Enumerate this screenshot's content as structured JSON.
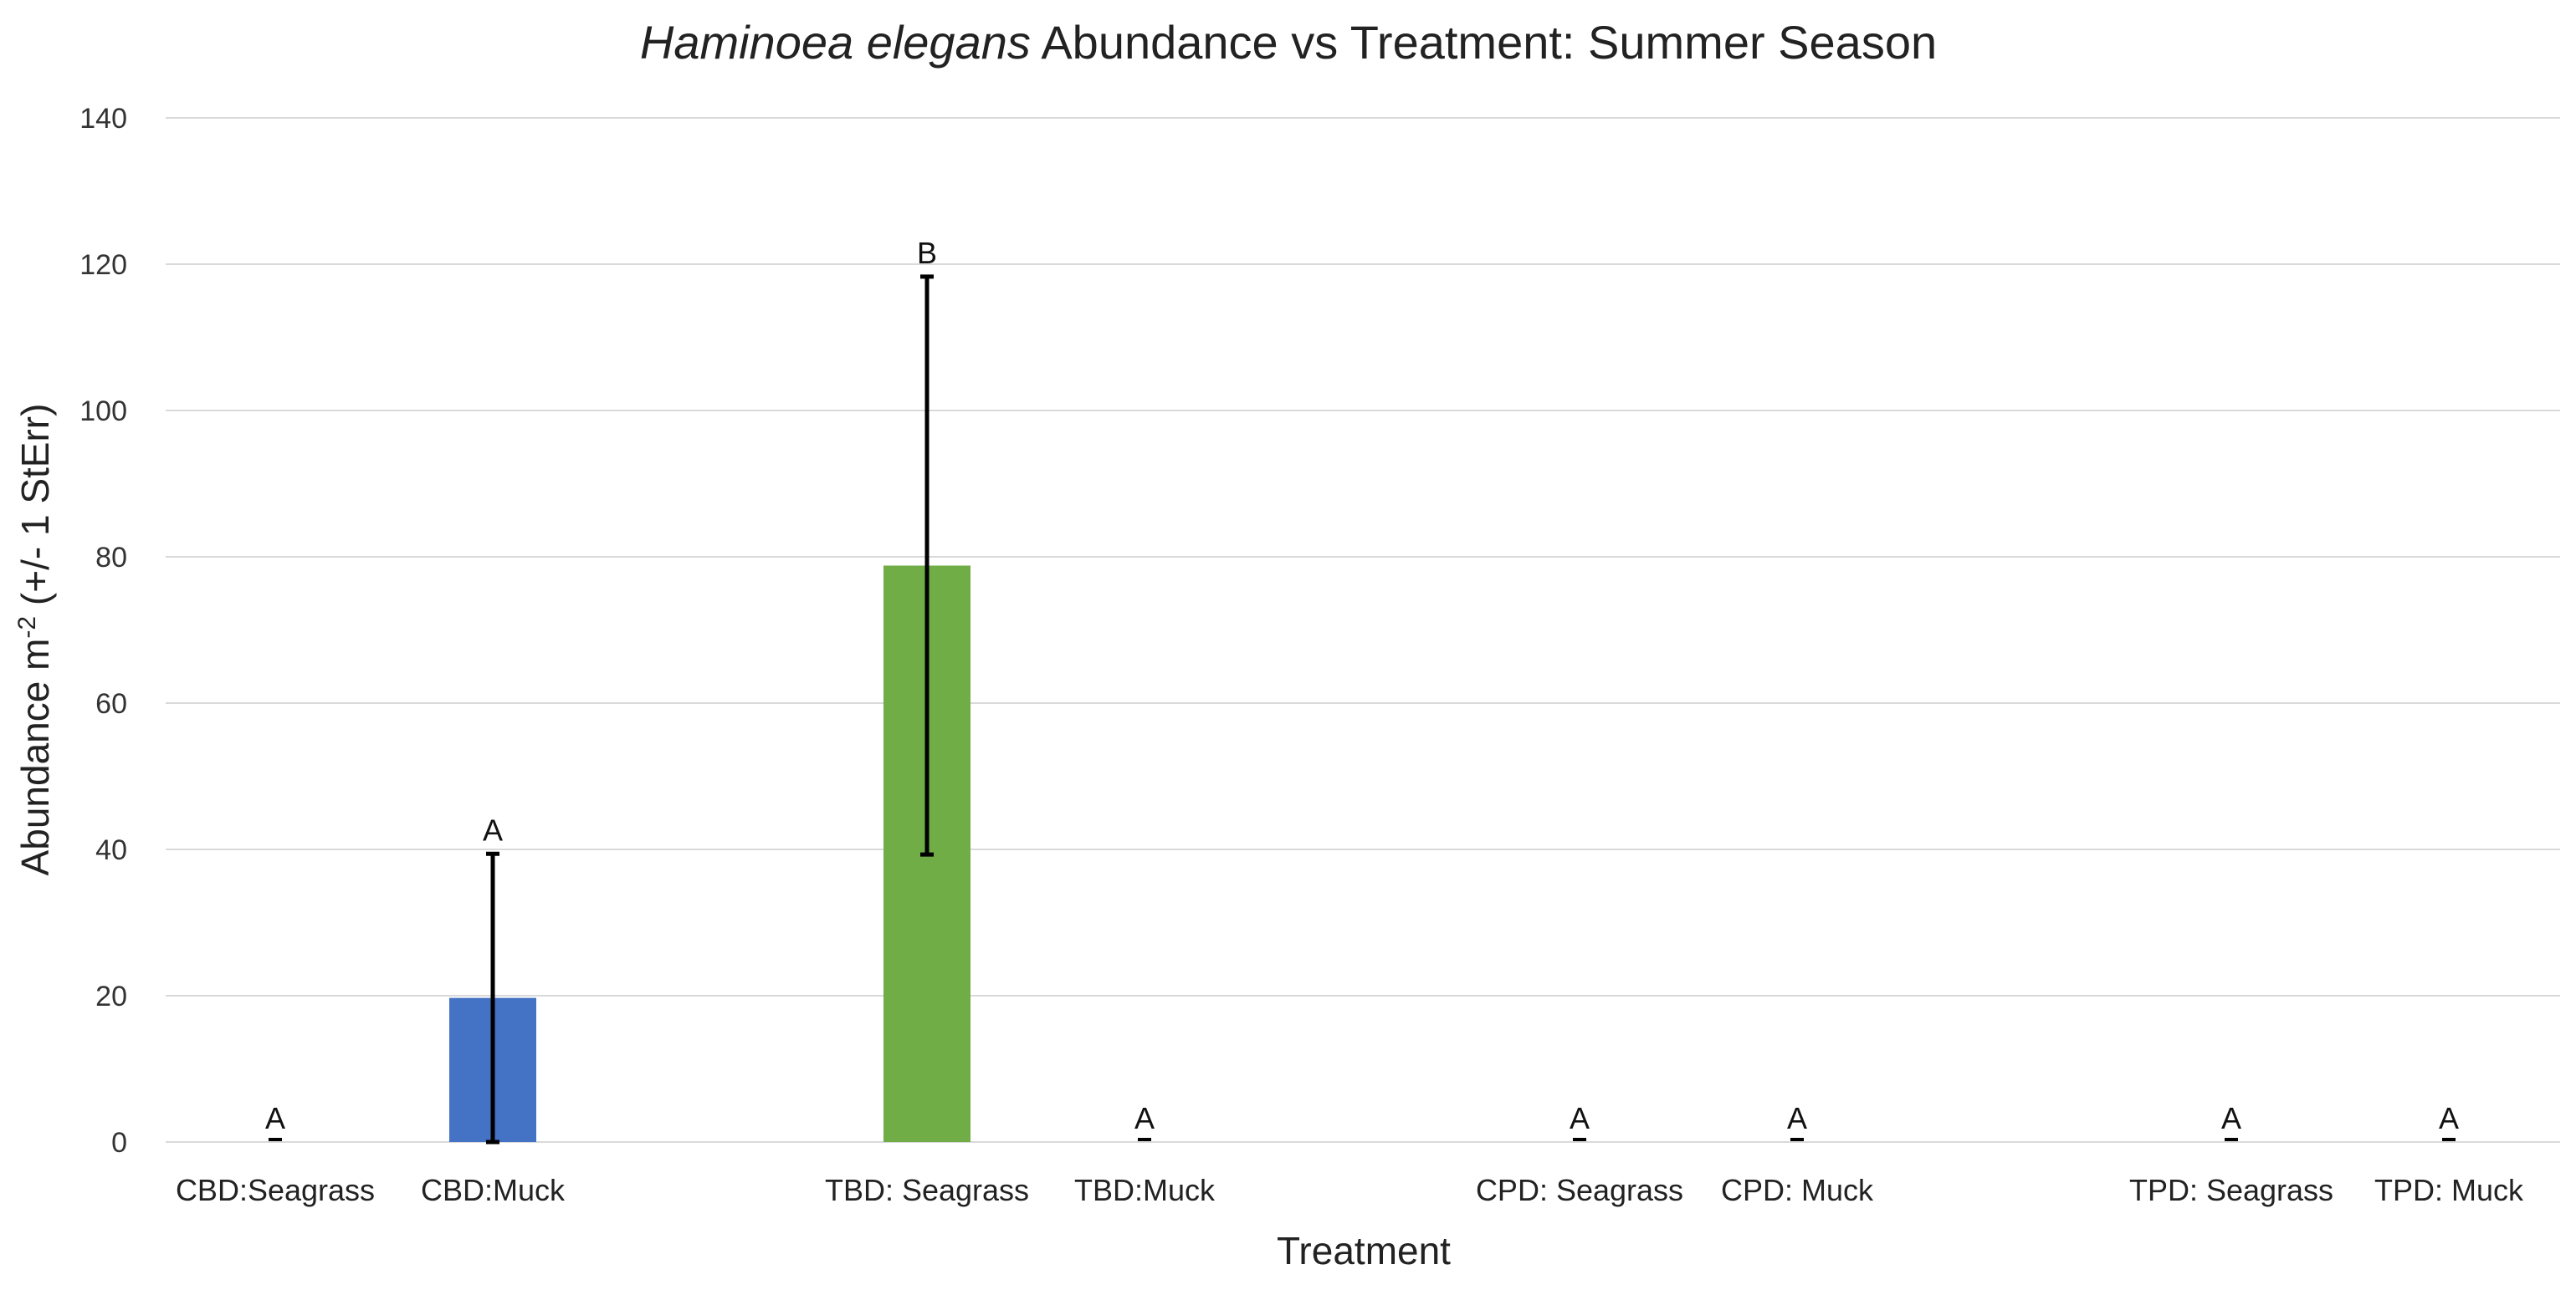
{
  "chart_data": {
    "type": "bar",
    "title_italic": "Haminoea elegans",
    "title_rest": " Abundance vs Treatment: Summer Season",
    "xlabel": "Treatment",
    "ylabel_prefix": "Abundance m",
    "ylabel_sup": "-2",
    "ylabel_suffix": " (+/- 1 StErr)",
    "ylim": [
      0,
      140
    ],
    "yticks": [
      "0",
      "20",
      "40",
      "60",
      "80",
      "100",
      "120",
      "140"
    ],
    "grid": true,
    "categories": [
      "CBD:Seagrass",
      "CBD:Muck",
      "TBD: Seagrass",
      "TBD:Muck",
      "CPD: Seagrass",
      "CPD: Muck",
      "TPD: Seagrass",
      "TPD: Muck"
    ],
    "values": [
      0,
      19.7,
      78.8,
      0,
      0,
      0,
      0,
      0
    ],
    "errors": [
      0,
      19.7,
      39.5,
      0,
      0,
      0,
      0,
      0
    ],
    "significance": [
      "A",
      "A",
      "B",
      "A",
      "A",
      "A",
      "A",
      "A"
    ],
    "bar_colors": [
      "#4472c4",
      "#4472c4",
      "#70ad47",
      "#70ad47",
      "#4472c4",
      "#4472c4",
      "#70ad47",
      "#70ad47"
    ]
  }
}
